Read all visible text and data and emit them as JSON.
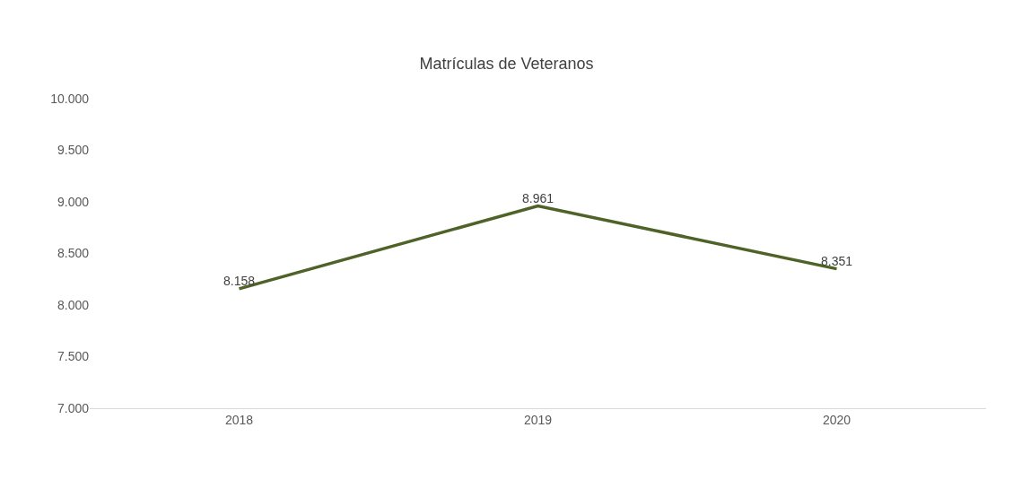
{
  "chart_data": {
    "type": "line",
    "title": "Matrículas de Veteranos",
    "categories": [
      "2018",
      "2019",
      "2020"
    ],
    "series": [
      {
        "color": "#4f6228",
        "values": [
          8158,
          8961,
          8351
        ],
        "value_labels": [
          "8.158",
          "8.961",
          "8.351"
        ]
      }
    ],
    "ylim": [
      7000,
      10000
    ],
    "yticks": [
      {
        "value": 7000,
        "label": "7.000"
      },
      {
        "value": 7500,
        "label": "7.500"
      },
      {
        "value": 8000,
        "label": "8.000"
      },
      {
        "value": 8500,
        "label": "8.500"
      },
      {
        "value": 9000,
        "label": "9.000"
      },
      {
        "value": 9500,
        "label": "9.500"
      },
      {
        "value": 10000,
        "label": "10.000"
      }
    ],
    "grid": false,
    "legend": false,
    "marker": "none",
    "line_style": "solid"
  }
}
